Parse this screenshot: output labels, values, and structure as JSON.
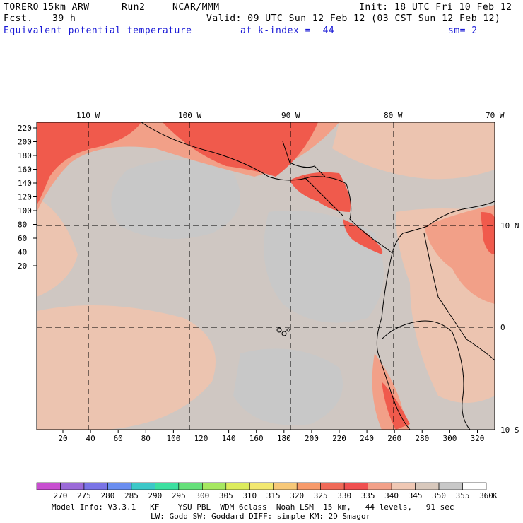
{
  "header": {
    "model": "TORERO",
    "resolution": "15km ARW",
    "run": "Run2",
    "org": "NCAR/MMM",
    "init": "Init: 18 UTC Fri 10 Feb 12",
    "fcst_label": "Fcst.",
    "fcst_hours": "39 h",
    "valid": "Valid: 09 UTC Sun 12 Feb 12 (03 CST Sun 12 Feb 12)",
    "field": "Equivalent potential temperature",
    "level": "at k-index =  44",
    "smoothing": "sm= 2"
  },
  "map": {
    "lon_labels": [
      "110 W",
      "100 W",
      "90 W",
      "80 W",
      "70 W"
    ],
    "lat_labels": [
      "10 N",
      "0",
      "10 S"
    ],
    "y_grid_labels": [
      "220",
      "200",
      "180",
      "160",
      "140",
      "120",
      "100",
      "80",
      "60",
      "40",
      "20"
    ],
    "x_grid_labels": [
      "20",
      "40",
      "60",
      "80",
      "100",
      "120",
      "140",
      "160",
      "180",
      "200",
      "220",
      "240",
      "260",
      "280",
      "300",
      "320"
    ]
  },
  "colorbar": {
    "unit": "K",
    "labels": [
      "270",
      "275",
      "280",
      "285",
      "290",
      "295",
      "300",
      "305",
      "310",
      "315",
      "320",
      "325",
      "330",
      "335",
      "340",
      "345",
      "350",
      "355",
      "360"
    ],
    "colors": [
      "#c84fd0",
      "#9b6ad8",
      "#7a74e6",
      "#6a8ef0",
      "#3cc8c8",
      "#3ce0a0",
      "#66e07a",
      "#a6e860",
      "#dcec5c",
      "#f2e870",
      "#f7c878",
      "#f79a6a",
      "#f06a58",
      "#f05050",
      "#f2a088",
      "#f0c8b4",
      "#d8c8bc",
      "#c8c8c8",
      "#ffffff"
    ]
  },
  "footer": {
    "line1": "Model Info: V3.3.1   KF    YSU PBL  WDM 6class  Noah LSM  15 km,   44 levels,   91 sec",
    "line2": "LW: Godd SW: Goddard DIFF: simple KM: 2D Smagor"
  }
}
